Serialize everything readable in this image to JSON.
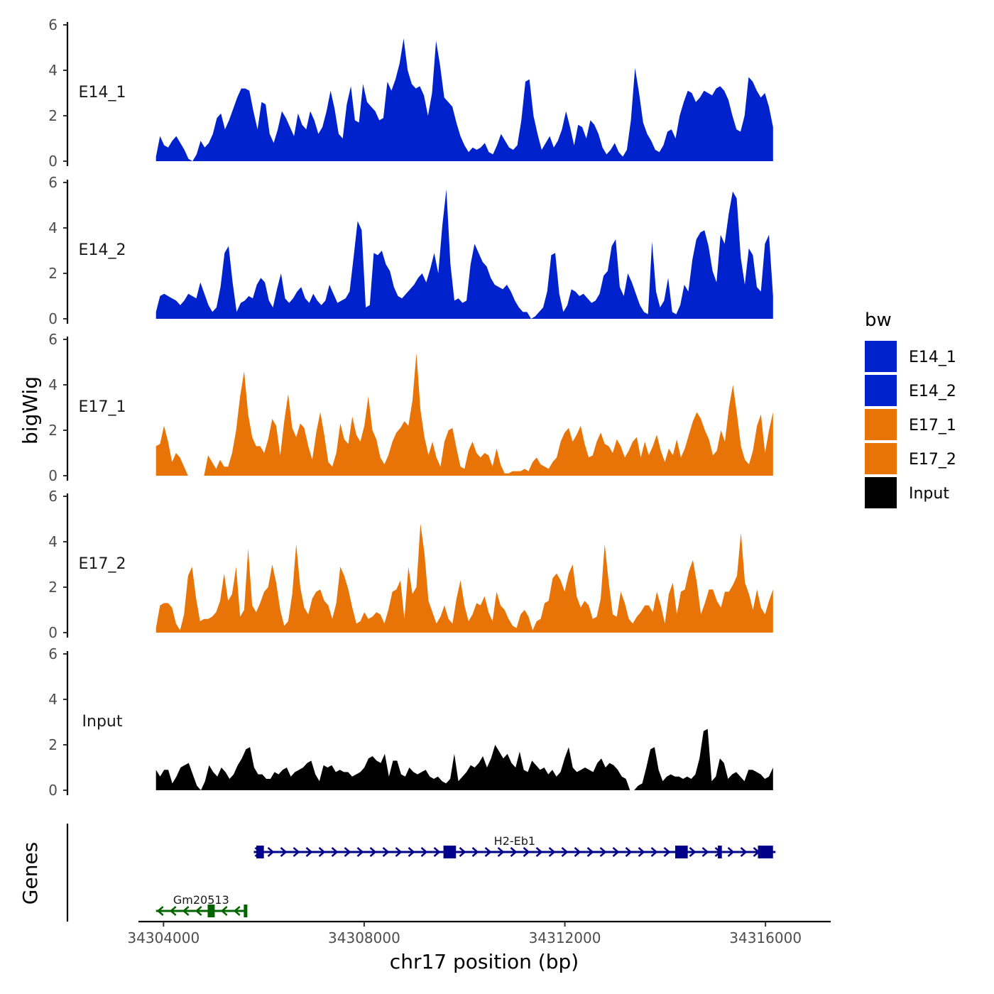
{
  "chart_data": {
    "type": "area",
    "title": "",
    "xlabel": "chr17 position (bp)",
    "ylabel": "bigWig",
    "genes_label": "Genes",
    "xlim": [
      34303500,
      34317300
    ],
    "x_ticks": [
      34304000,
      34308000,
      34312000,
      34316000
    ],
    "x_tick_labels": [
      "34304000",
      "34308000",
      "34312000",
      "34316000"
    ],
    "ylim": [
      0,
      6
    ],
    "y_ticks": [
      0,
      2,
      4,
      6
    ],
    "y_tick_labels": [
      "0",
      "2",
      "4",
      "6"
    ],
    "legend": {
      "title": "bw",
      "position": "right",
      "entries": [
        {
          "label": "E14_1",
          "color": "#0022CC"
        },
        {
          "label": "E14_2",
          "color": "#0022CC"
        },
        {
          "label": "E17_1",
          "color": "#E87407"
        },
        {
          "label": "E17_2",
          "color": "#E87407"
        },
        {
          "label": "Input",
          "color": "#000000"
        }
      ]
    },
    "series": [
      {
        "name": "E14_1",
        "color": "#0022CC",
        "x_start": 34303850,
        "x_end": 34316150,
        "values": [
          0.2,
          1.1,
          0.7,
          0.6,
          0.9,
          1.1,
          0.8,
          0.5,
          0.1,
          0.0,
          0.3,
          0.9,
          0.6,
          0.8,
          1.2,
          1.9,
          2.1,
          1.4,
          1.8,
          2.3,
          2.8,
          3.2,
          3.2,
          3.1,
          2.2,
          1.4,
          2.6,
          2.5,
          1.2,
          0.8,
          1.4,
          2.2,
          1.9,
          1.5,
          1.1,
          2.1,
          1.6,
          1.4,
          2.2,
          1.8,
          1.2,
          1.5,
          2.2,
          3.1,
          2.3,
          1.2,
          1.0,
          2.5,
          3.3,
          1.8,
          1.7,
          3.4,
          2.6,
          2.4,
          2.2,
          1.8,
          1.9,
          3.5,
          3.1,
          3.6,
          4.3,
          5.4,
          4.0,
          3.4,
          3.2,
          3.3,
          2.9,
          2.0,
          3.0,
          5.3,
          4.2,
          2.8,
          2.6,
          2.4,
          1.7,
          1.1,
          0.7,
          0.4,
          0.6,
          0.5,
          0.6,
          0.8,
          0.4,
          0.3,
          0.7,
          1.2,
          0.9,
          0.6,
          0.5,
          0.7,
          1.8,
          3.5,
          3.6,
          2.0,
          1.2,
          0.5,
          0.8,
          1.1,
          0.6,
          0.9,
          1.4,
          2.2,
          1.5,
          0.7,
          1.6,
          1.5,
          1.0,
          1.8,
          1.6,
          1.2,
          0.6,
          0.3,
          0.5,
          0.8,
          0.4,
          0.2,
          0.5,
          1.8,
          4.1,
          3.0,
          1.7,
          1.2,
          0.9,
          0.5,
          0.4,
          0.7,
          1.3,
          1.4,
          1.0,
          2.0,
          2.6,
          3.1,
          3.0,
          2.6,
          2.8,
          3.1,
          3.0,
          2.9,
          3.2,
          3.3,
          3.1,
          2.7,
          2.0,
          1.4,
          1.3,
          2.0,
          3.7,
          3.5,
          3.1,
          2.8,
          3.0,
          2.4,
          1.5
        ]
      },
      {
        "name": "E14_2",
        "color": "#0022CC",
        "x_start": 34303850,
        "x_end": 34316150,
        "values": [
          0.3,
          1.0,
          1.1,
          1.0,
          0.9,
          0.8,
          0.6,
          0.8,
          1.1,
          1.0,
          0.9,
          1.6,
          1.1,
          0.6,
          0.3,
          0.5,
          1.4,
          2.9,
          3.2,
          1.6,
          0.3,
          0.7,
          0.8,
          1.0,
          0.9,
          1.5,
          1.8,
          1.6,
          0.8,
          0.5,
          1.3,
          2.0,
          0.9,
          0.7,
          0.9,
          1.2,
          1.4,
          0.9,
          0.7,
          1.1,
          0.8,
          0.6,
          0.8,
          1.5,
          1.1,
          0.7,
          0.8,
          0.9,
          1.2,
          2.7,
          4.3,
          3.9,
          0.5,
          0.6,
          2.9,
          2.8,
          3.0,
          2.4,
          2.1,
          1.4,
          1.0,
          0.9,
          1.1,
          1.3,
          1.5,
          1.8,
          2.0,
          1.6,
          2.2,
          2.9,
          2.0,
          4.1,
          5.7,
          2.4,
          0.8,
          0.9,
          0.7,
          0.8,
          2.4,
          3.3,
          2.9,
          2.5,
          2.3,
          1.8,
          1.5,
          1.4,
          1.3,
          1.5,
          1.2,
          0.8,
          0.5,
          0.3,
          0.3,
          0.0,
          0.1,
          0.3,
          0.5,
          1.2,
          2.8,
          2.9,
          1.1,
          0.3,
          0.6,
          1.3,
          1.2,
          1.0,
          1.1,
          0.9,
          0.7,
          0.8,
          1.1,
          1.9,
          2.1,
          3.2,
          3.5,
          1.4,
          1.0,
          2.0,
          1.6,
          1.1,
          0.6,
          0.3,
          0.2,
          3.4,
          1.2,
          0.5,
          0.8,
          1.8,
          0.3,
          0.2,
          0.6,
          1.5,
          1.2,
          2.6,
          3.5,
          3.8,
          3.9,
          3.2,
          2.1,
          1.6,
          3.7,
          3.3,
          4.6,
          5.6,
          5.3,
          2.7,
          1.5,
          3.1,
          2.8,
          1.4,
          1.2,
          3.3,
          3.7,
          1.0
        ]
      },
      {
        "name": "E17_1",
        "color": "#E87407",
        "x_start": 34303850,
        "x_end": 34316150,
        "values": [
          1.3,
          1.4,
          2.2,
          1.5,
          0.6,
          1.0,
          0.8,
          0.4,
          0.0,
          0.0,
          0.0,
          0.0,
          0.0,
          0.9,
          0.6,
          0.3,
          0.7,
          0.4,
          0.4,
          1.0,
          2.0,
          3.5,
          4.6,
          2.7,
          1.7,
          1.3,
          1.3,
          1.0,
          1.6,
          2.5,
          2.2,
          0.9,
          2.4,
          3.6,
          2.1,
          1.7,
          2.3,
          2.1,
          1.3,
          0.7,
          1.9,
          2.8,
          1.8,
          0.6,
          0.4,
          1.0,
          2.3,
          1.6,
          1.4,
          2.6,
          1.8,
          1.5,
          2.2,
          3.5,
          2.0,
          1.6,
          0.8,
          0.5,
          0.9,
          1.5,
          1.9,
          2.1,
          2.4,
          2.2,
          3.3,
          5.4,
          2.9,
          1.7,
          0.9,
          1.5,
          0.8,
          0.4,
          1.5,
          2.0,
          2.1,
          1.2,
          0.4,
          0.3,
          1.1,
          1.5,
          1.0,
          0.8,
          1.0,
          0.9,
          0.4,
          1.2,
          0.5,
          0.1,
          0.1,
          0.2,
          0.2,
          0.2,
          0.3,
          0.2,
          0.6,
          0.8,
          0.5,
          0.4,
          0.3,
          0.6,
          0.8,
          1.5,
          1.9,
          2.1,
          1.5,
          1.8,
          2.2,
          1.4,
          0.8,
          0.9,
          1.5,
          1.9,
          1.4,
          1.3,
          1.0,
          1.6,
          1.3,
          0.8,
          1.1,
          1.5,
          1.7,
          0.8,
          1.5,
          0.9,
          1.3,
          1.8,
          1.1,
          0.6,
          1.2,
          0.9,
          1.6,
          0.8,
          1.2,
          1.8,
          2.4,
          2.8,
          2.5,
          2.0,
          1.6,
          0.9,
          1.1,
          2.0,
          1.5,
          3.0,
          4.0,
          2.7,
          1.3,
          0.7,
          0.5,
          1.1,
          2.2,
          2.7,
          1.0,
          2.0,
          2.8
        ]
      },
      {
        "name": "E17_2",
        "color": "#E87407",
        "x_start": 34303850,
        "x_end": 34316150,
        "values": [
          0.2,
          1.2,
          1.3,
          1.3,
          1.1,
          0.4,
          0.1,
          0.8,
          2.5,
          2.9,
          1.5,
          0.5,
          0.6,
          0.6,
          0.7,
          0.9,
          1.4,
          2.6,
          1.4,
          1.7,
          2.9,
          0.7,
          1.0,
          3.7,
          1.2,
          0.9,
          1.3,
          1.8,
          2.0,
          3.0,
          2.2,
          1.0,
          0.3,
          0.5,
          1.7,
          3.9,
          2.0,
          1.1,
          0.8,
          1.5,
          1.8,
          1.9,
          1.4,
          1.2,
          0.6,
          1.3,
          2.9,
          2.5,
          1.9,
          1.1,
          0.4,
          0.5,
          0.9,
          0.6,
          0.7,
          0.9,
          0.8,
          0.4,
          1.0,
          1.8,
          1.9,
          2.3,
          0.6,
          2.9,
          1.7,
          2.0,
          4.8,
          3.5,
          1.4,
          0.9,
          0.4,
          0.7,
          1.2,
          0.6,
          0.4,
          1.5,
          2.3,
          1.2,
          0.5,
          0.8,
          1.3,
          1.2,
          1.6,
          0.9,
          0.5,
          1.8,
          1.2,
          1.0,
          0.6,
          0.3,
          0.2,
          0.8,
          1.0,
          0.7,
          0.1,
          0.5,
          0.6,
          1.3,
          1.4,
          2.4,
          2.6,
          2.3,
          1.8,
          2.6,
          3.0,
          1.6,
          1.1,
          1.4,
          1.2,
          0.6,
          0.7,
          1.5,
          3.9,
          2.2,
          0.8,
          0.7,
          1.8,
          1.3,
          0.6,
          0.4,
          0.7,
          0.9,
          1.2,
          1.2,
          0.9,
          1.8,
          1.2,
          0.4,
          1.7,
          2.2,
          0.8,
          1.8,
          1.9,
          2.7,
          3.2,
          2.2,
          0.8,
          1.3,
          1.9,
          1.9,
          1.4,
          1.1,
          1.8,
          1.8,
          2.1,
          2.5,
          4.4,
          2.2,
          1.7,
          1.0,
          1.9,
          1.1,
          0.8,
          1.4,
          1.9
        ]
      },
      {
        "name": "Input",
        "color": "#000000",
        "x_start": 34303850,
        "x_end": 34316150,
        "values": [
          0.9,
          0.6,
          0.9,
          0.9,
          0.3,
          0.6,
          1.0,
          1.1,
          1.2,
          0.7,
          0.2,
          0.0,
          0.4,
          1.1,
          0.8,
          0.6,
          1.0,
          0.8,
          0.5,
          0.7,
          1.1,
          1.4,
          1.8,
          1.9,
          1.0,
          0.7,
          0.7,
          0.5,
          0.5,
          0.8,
          0.7,
          0.9,
          1.0,
          0.6,
          0.8,
          0.9,
          1.0,
          1.2,
          1.3,
          0.7,
          0.4,
          1.1,
          1.0,
          1.1,
          0.8,
          0.9,
          0.8,
          0.8,
          0.6,
          0.7,
          0.8,
          1.0,
          1.4,
          1.5,
          1.3,
          1.2,
          1.6,
          0.6,
          1.3,
          1.3,
          0.7,
          0.6,
          1.0,
          0.8,
          0.7,
          0.8,
          0.9,
          0.6,
          0.5,
          0.6,
          0.4,
          0.3,
          0.5,
          1.6,
          0.4,
          0.6,
          0.8,
          1.1,
          1.0,
          1.2,
          1.5,
          1.0,
          1.4,
          2.0,
          1.7,
          1.4,
          1.6,
          1.2,
          1.0,
          1.7,
          0.9,
          0.8,
          1.3,
          1.1,
          0.9,
          1.0,
          0.7,
          0.9,
          0.6,
          0.8,
          1.4,
          1.9,
          1.0,
          0.8,
          0.9,
          1.0,
          0.9,
          0.8,
          1.2,
          1.4,
          1.0,
          1.2,
          1.1,
          0.9,
          0.6,
          0.5,
          0.0,
          0.0,
          0.2,
          0.3,
          1.0,
          1.8,
          1.9,
          0.9,
          0.4,
          0.6,
          0.7,
          0.6,
          0.6,
          0.5,
          0.6,
          0.5,
          0.7,
          1.4,
          2.6,
          2.7,
          0.4,
          0.6,
          1.4,
          1.2,
          0.5,
          0.7,
          0.8,
          0.6,
          0.4,
          0.9,
          0.9,
          0.8,
          0.7,
          0.5,
          0.6,
          1.0
        ]
      }
    ],
    "genes": [
      {
        "name": "H2-Eb1",
        "strand": "+",
        "color": "#00008B",
        "start": 34305800,
        "end": 34316200,
        "exons": [
          [
            34305850,
            34306000
          ],
          [
            34309580,
            34309830
          ],
          [
            34314200,
            34314450
          ],
          [
            34315050,
            34315130
          ],
          [
            34315850,
            34316150
          ]
        ]
      },
      {
        "name": "Gm20513",
        "strand": "-",
        "color": "#006400",
        "start": 34303850,
        "end": 34305650,
        "exons": [
          [
            34304880,
            34305020
          ],
          [
            34305600,
            34305660
          ]
        ]
      }
    ]
  }
}
